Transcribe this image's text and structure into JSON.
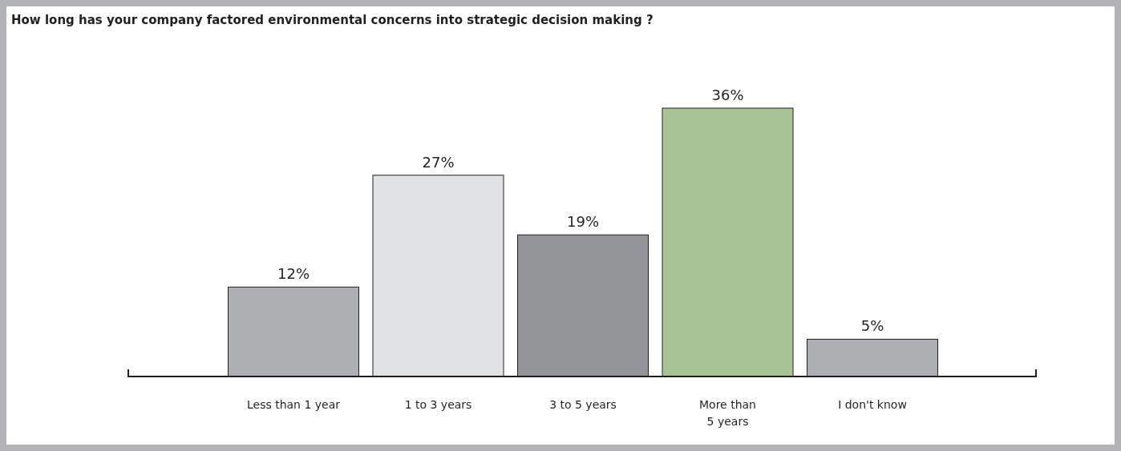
{
  "chart_data": {
    "type": "bar",
    "title": "How long has your company factored environmental concerns into strategic decision making ?",
    "categories": [
      "Less than 1 year",
      "1 to 3 years",
      "3 to 5 years",
      "More than\n5 years",
      "I don't know"
    ],
    "values": [
      12,
      27,
      19,
      36,
      5
    ],
    "colors": [
      "#adafb3",
      "#e1e2e4",
      "#949599",
      "#a8c496",
      "#adafb3"
    ],
    "value_labels": [
      "12%",
      "27%",
      "19%",
      "36%",
      "5%"
    ]
  }
}
